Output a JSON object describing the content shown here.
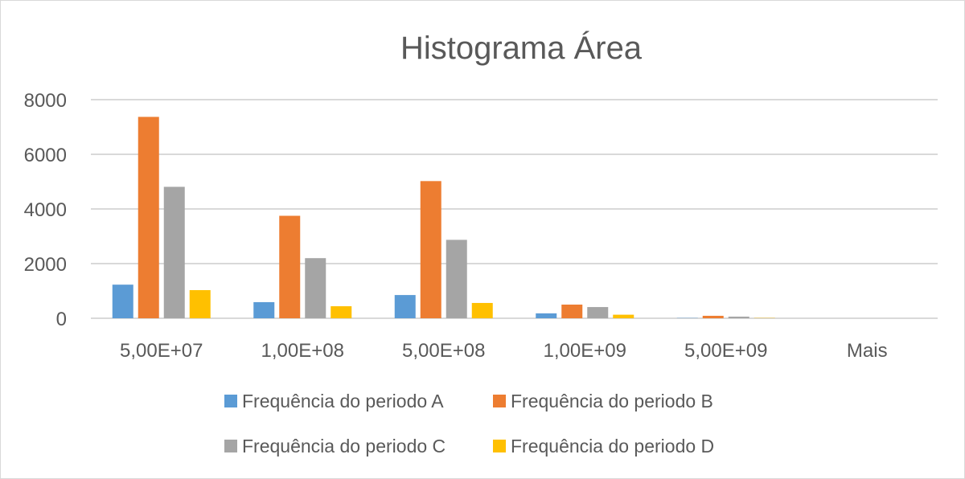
{
  "chart_data": {
    "type": "bar",
    "title": "Histograma Área",
    "xlabel": "",
    "ylabel": "",
    "categories": [
      "5,00E+07",
      "1,00E+08",
      "5,00E+08",
      "1,00E+09",
      "5,00E+09",
      "Mais"
    ],
    "ylim": [
      0,
      8000
    ],
    "yticks": [
      0,
      2000,
      4000,
      6000,
      8000
    ],
    "grid": true,
    "legend_position": "bottom",
    "series": [
      {
        "name": "Frequência do periodo A",
        "color": "#5B9BD5",
        "values": [
          1230,
          590,
          850,
          180,
          10,
          0
        ]
      },
      {
        "name": "Frequência do periodo B",
        "color": "#ED7D31",
        "values": [
          7370,
          3750,
          5020,
          500,
          90,
          0
        ]
      },
      {
        "name": "Frequência do periodo C",
        "color": "#A5A5A5",
        "values": [
          4810,
          2200,
          2870,
          410,
          60,
          0
        ]
      },
      {
        "name": "Frequência do periodo D",
        "color": "#FFC000",
        "values": [
          1030,
          440,
          560,
          130,
          10,
          0
        ]
      }
    ]
  }
}
